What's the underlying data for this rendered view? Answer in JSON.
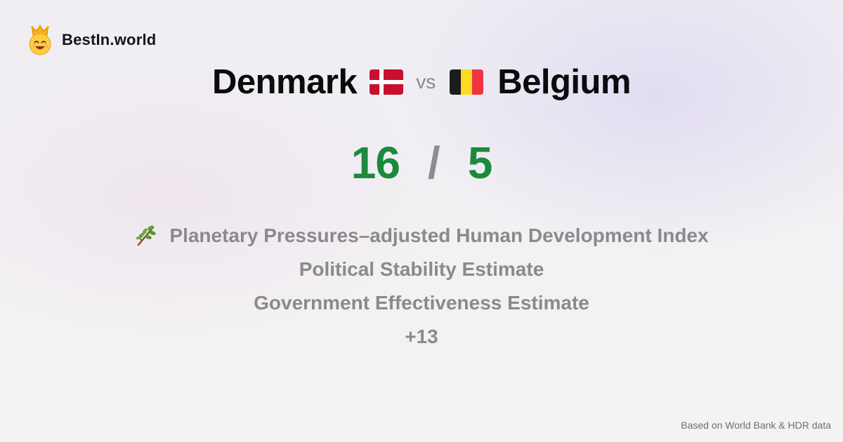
{
  "brand": {
    "name": "BestIn.world",
    "logo_icon": "crown-smiley-icon"
  },
  "comparison": {
    "left": {
      "name": "Denmark",
      "flag_icon": "denmark-flag-icon",
      "flag_colors": {
        "field": "#c8102e",
        "cross": "#ffffff"
      }
    },
    "separator": "vs",
    "right": {
      "name": "Belgium",
      "flag_icon": "belgium-flag-icon",
      "flag_colors": [
        "#1c1c1c",
        "#fdda24",
        "#ef3340"
      ]
    }
  },
  "score": {
    "left": "16",
    "separator": "/",
    "right": "5",
    "color": "#1b8a3c"
  },
  "metrics": {
    "items": [
      {
        "label": "Planetary Pressures–adjusted Human Development Index",
        "icon": "leaf-branch-icon"
      },
      {
        "label": "Political Stability Estimate"
      },
      {
        "label": "Government Effectiveness Estimate"
      }
    ],
    "more": "+13"
  },
  "footer": {
    "source": "Based on World Bank & HDR data"
  }
}
